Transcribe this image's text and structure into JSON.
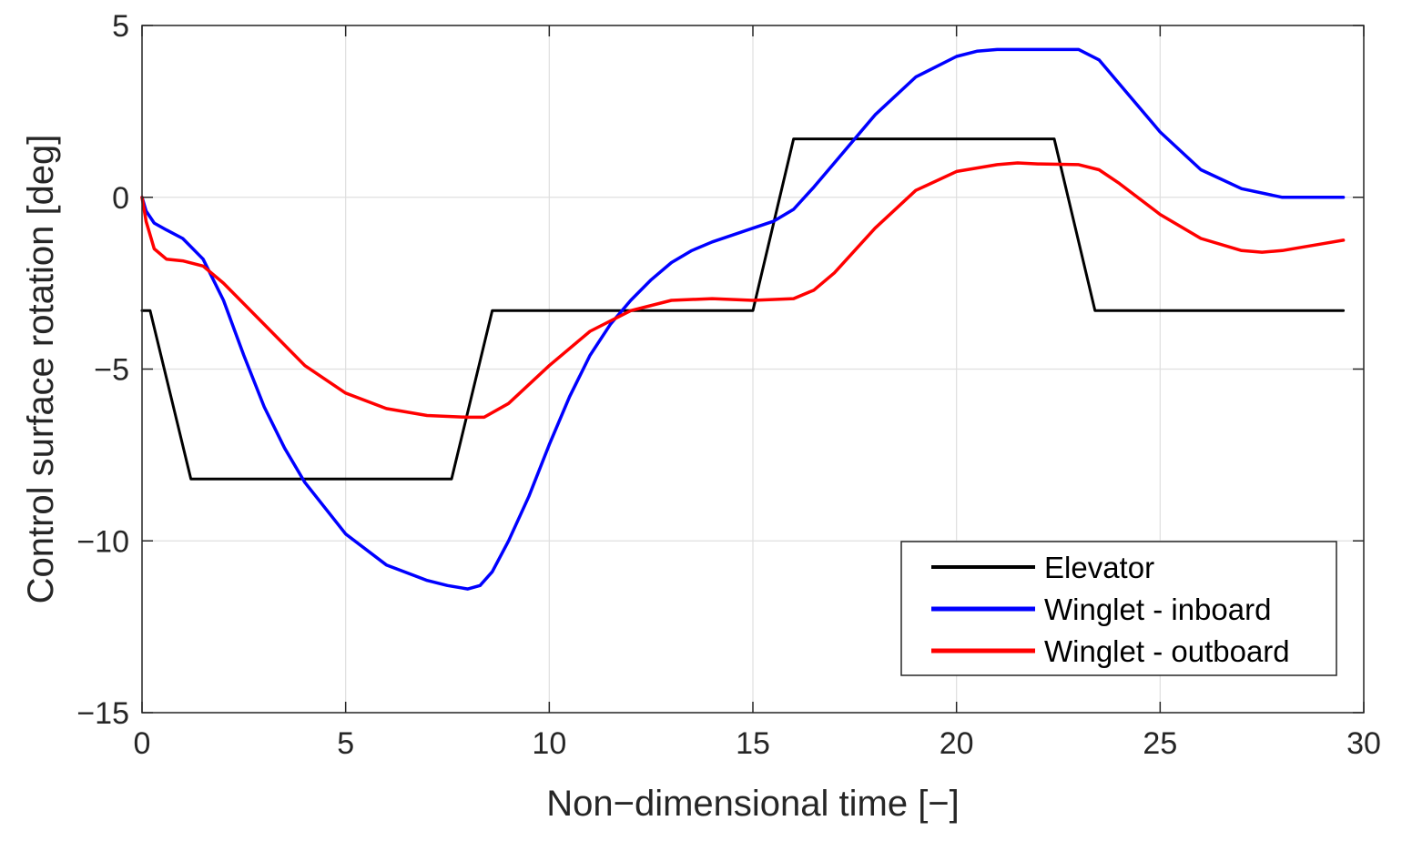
{
  "chart_data": {
    "type": "line",
    "title": "",
    "xlabel": "Non−dimensional time [−]",
    "ylabel": "Control surface rotation [deg]",
    "xlim": [
      0,
      30
    ],
    "ylim": [
      -15,
      5
    ],
    "xticks": [
      0,
      5,
      10,
      15,
      20,
      25,
      30
    ],
    "yticks": [
      -15,
      -10,
      -5,
      0,
      5
    ],
    "xtick_labels": [
      "0",
      "5",
      "10",
      "15",
      "20",
      "25",
      "30"
    ],
    "ytick_labels": [
      "−15",
      "−10",
      "−5",
      "0",
      "5"
    ],
    "grid": true,
    "legend_position": "bottom-right",
    "series": [
      {
        "name": "Elevator",
        "color": "#000000",
        "x": [
          0,
          0.2,
          1.2,
          7.6,
          8.6,
          15.0,
          16.0,
          22.4,
          23.4,
          29.5
        ],
        "y": [
          -3.3,
          -3.3,
          -8.2,
          -8.2,
          -3.3,
          -3.3,
          1.7,
          1.7,
          -3.3,
          -3.3
        ]
      },
      {
        "name": "Winglet - inboard",
        "color": "#0000ff",
        "x": [
          0,
          0.1,
          0.3,
          0.6,
          1.0,
          1.5,
          2.0,
          2.5,
          3.0,
          3.5,
          4.0,
          5.0,
          6.0,
          7.0,
          7.5,
          8.0,
          8.3,
          8.6,
          9.0,
          9.5,
          10.0,
          10.5,
          11.0,
          11.5,
          12.0,
          12.5,
          13.0,
          13.5,
          14.0,
          15.0,
          15.5,
          16.0,
          16.5,
          17.0,
          18.0,
          19.0,
          20.0,
          20.5,
          21.0,
          22.0,
          23.0,
          23.5,
          24.0,
          25.0,
          26.0,
          27.0,
          28.0,
          29.0,
          29.5
        ],
        "y": [
          0,
          -0.4,
          -0.75,
          -0.95,
          -1.2,
          -1.8,
          -3.0,
          -4.6,
          -6.1,
          -7.3,
          -8.3,
          -9.8,
          -10.7,
          -11.15,
          -11.3,
          -11.4,
          -11.3,
          -10.9,
          -10.0,
          -8.7,
          -7.2,
          -5.8,
          -4.6,
          -3.7,
          -3.0,
          -2.4,
          -1.9,
          -1.55,
          -1.3,
          -0.9,
          -0.7,
          -0.35,
          0.3,
          1.0,
          2.4,
          3.5,
          4.1,
          4.25,
          4.3,
          4.3,
          4.3,
          4.0,
          3.3,
          1.9,
          0.8,
          0.25,
          0.0,
          0.0,
          0.0
        ]
      },
      {
        "name": "Winglet - outboard",
        "color": "#ff0000",
        "x": [
          0,
          0.1,
          0.3,
          0.6,
          1.0,
          1.5,
          2.0,
          3.0,
          4.0,
          5.0,
          6.0,
          7.0,
          8.0,
          8.4,
          9.0,
          10.0,
          11.0,
          12.0,
          13.0,
          14.0,
          15.0,
          16.0,
          16.5,
          17.0,
          18.0,
          19.0,
          20.0,
          21.0,
          21.5,
          22.0,
          23.0,
          23.5,
          24.0,
          25.0,
          26.0,
          27.0,
          27.5,
          28.0,
          29.0,
          29.5
        ],
        "y": [
          0,
          -0.7,
          -1.5,
          -1.8,
          -1.85,
          -2.0,
          -2.5,
          -3.7,
          -4.9,
          -5.7,
          -6.15,
          -6.35,
          -6.4,
          -6.4,
          -6.0,
          -4.9,
          -3.9,
          -3.3,
          -3.0,
          -2.95,
          -3.0,
          -2.95,
          -2.7,
          -2.2,
          -0.9,
          0.2,
          0.75,
          0.95,
          1.0,
          0.97,
          0.95,
          0.8,
          0.4,
          -0.5,
          -1.2,
          -1.55,
          -1.6,
          -1.55,
          -1.35,
          -1.25
        ]
      }
    ]
  }
}
